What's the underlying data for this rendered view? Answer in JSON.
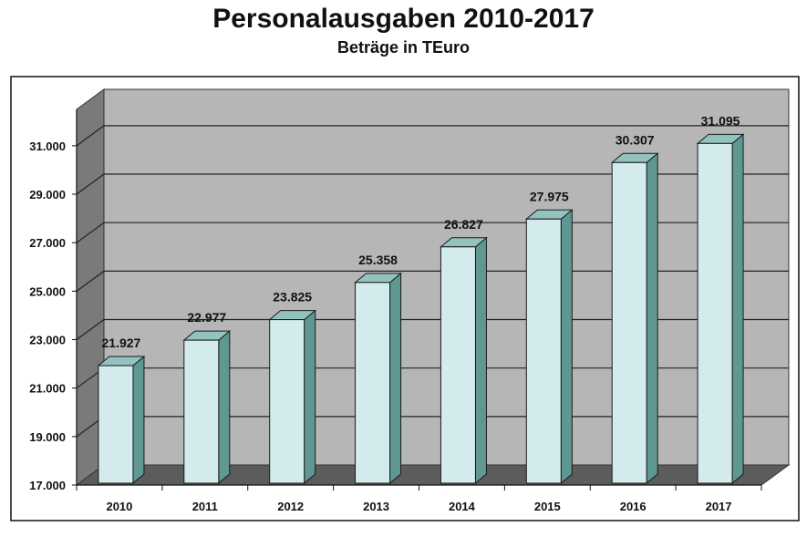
{
  "chart_data": {
    "type": "bar",
    "title": "Personalausgaben 2010-2017",
    "subtitle": "Beträge in TEuro",
    "categories": [
      "2010",
      "2011",
      "2012",
      "2013",
      "2014",
      "2015",
      "2016",
      "2017"
    ],
    "values": [
      21927,
      22977,
      23825,
      25358,
      26827,
      27975,
      30307,
      31095
    ],
    "value_labels": [
      "21.927",
      "22.977",
      "23.825",
      "25.358",
      "26.827",
      "27.975",
      "30.307",
      "31.095"
    ],
    "ylim": [
      17000,
      32500
    ],
    "yticks": [
      17000,
      19000,
      21000,
      23000,
      25000,
      27000,
      29000,
      31000
    ],
    "ytick_labels": [
      "17.000",
      "19.000",
      "21.000",
      "23.000",
      "25.000",
      "27.000",
      "29.000",
      "31.000"
    ],
    "grid": true,
    "legend": "none",
    "colors": {
      "bar_front": "#d4ebee",
      "bar_side": "#5f9892",
      "bar_top": "#93c3bf",
      "wall": "#b6b6b6",
      "floor": "#5c5c5c",
      "left_wall": "#7a7a7a",
      "gridline": "#222222"
    }
  }
}
